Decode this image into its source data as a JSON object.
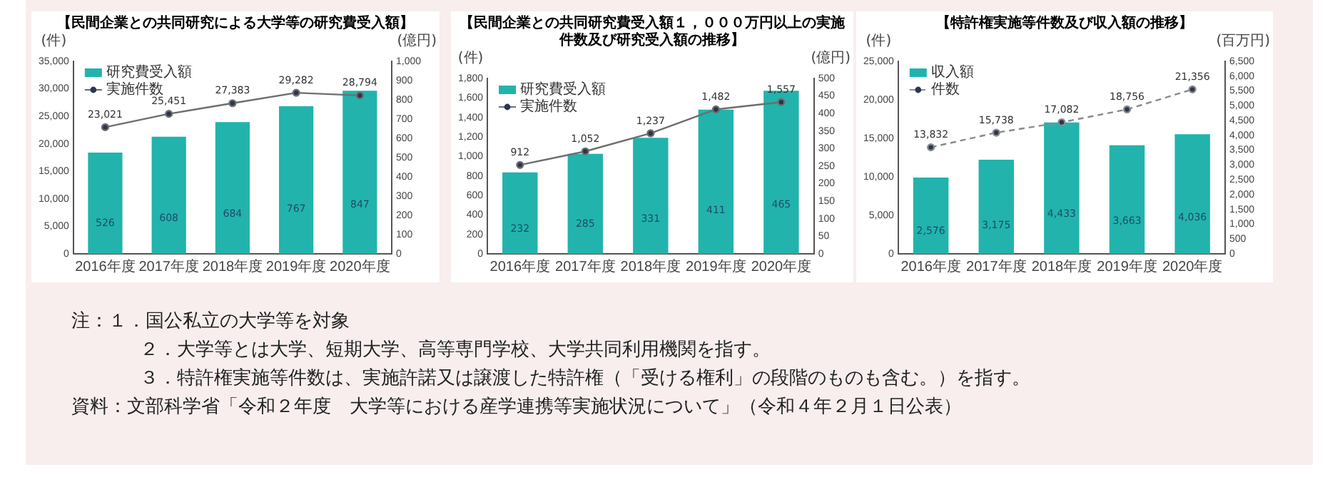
{
  "chart_data": [
    {
      "type": "bar",
      "title": "【民間企業との共同研究による大学等の研究費受入額】",
      "ylabel": "(件)",
      "y2label": "(億円)",
      "categories": [
        "2016年度",
        "2017年度",
        "2018年度",
        "2019年度",
        "2020年度"
      ],
      "series": [
        {
          "name": "研究費受入額",
          "axis": "y2",
          "color": "#22b3ad",
          "values": [
            526,
            608,
            684,
            767,
            847
          ],
          "value_labels": [
            "526",
            "608",
            "684",
            "767",
            "847"
          ]
        },
        {
          "name": "実施件数",
          "type": "line",
          "color": "#6e6e6e",
          "values": [
            23021,
            25451,
            27383,
            29282,
            28794
          ],
          "value_labels": [
            "23,021",
            "25,451",
            "27,383",
            "29,282",
            "28,794"
          ]
        }
      ],
      "ylim": [
        0,
        35000
      ],
      "yticks": [
        0,
        {
          "value": 5000,
          "label": "5,000"
        },
        {
          "value": 10000,
          "label": "10,000"
        },
        {
          "value": 15000,
          "label": "15,000"
        },
        {
          "value": 20000,
          "label": "20,000"
        },
        {
          "value": 25000,
          "label": "25,000"
        },
        {
          "value": 30000,
          "label": "30,000"
        },
        {
          "value": 35000,
          "label": "35,000"
        }
      ],
      "y2lim": [
        0,
        1000
      ],
      "y2ticks": [
        0,
        100,
        200,
        300,
        400,
        500,
        600,
        700,
        800,
        900,
        {
          "value": 1000,
          "label": "1,000"
        }
      ],
      "legend": "top left",
      "marker": "circle",
      "line_style": "solid",
      "annotations": [
        "注：１．国公私立の大学等を対象",
        "２．大学等とは大学、短期大学、高等専門学校、大学共同利用機関を指す。",
        "３．特許権実施等件数は、実施許諾又は譲渡した特許権（「受ける権利」の段階のものも含む。）を指す。",
        "資料：文部科学省「令和２年度　大学等における産学連携等実施状況について」（令和４年２月１日公表）"
      ]
    },
    {
      "type": "bar",
      "title": "【民間企業との共同研究費受入額１，０００万円以上の実施件数及び研究受入額の推移】",
      "ylabel": "(件)",
      "y2label": "(億円)",
      "categories": [
        "2016年度",
        "2017年度",
        "2018年度",
        "2019年度",
        "2020年度"
      ],
      "series": [
        {
          "name": "研究費受入額",
          "axis": "y2",
          "color": "#22b3ad",
          "values": [
            232,
            285,
            331,
            411,
            465
          ],
          "value_labels": [
            "232",
            "285",
            "331",
            "411",
            "465"
          ]
        },
        {
          "name": "実施件数",
          "type": "line",
          "color": "#6e6e6e",
          "values": [
            912,
            1052,
            1237,
            1482,
            1557
          ],
          "value_labels": [
            "912",
            "1,052",
            "1,237",
            "1,482",
            "1,557"
          ]
        }
      ],
      "ylim": [
        0,
        1800
      ],
      "yticks": [
        0,
        200,
        400,
        600,
        800,
        {
          "value": 1000,
          "label": "1,000"
        },
        {
          "value": 1200,
          "label": "1,200"
        },
        {
          "value": 1400,
          "label": "1,400"
        },
        {
          "value": 1600,
          "label": "1,600"
        },
        {
          "value": 1800,
          "label": "1,800"
        }
      ],
      "y2lim": [
        0,
        500
      ],
      "y2ticks": [
        0,
        50,
        100,
        150,
        200,
        250,
        300,
        350,
        400,
        450,
        500
      ],
      "legend": "top left",
      "marker": "circle",
      "line_style": "solid"
    },
    {
      "type": "bar",
      "title": "【特許権実施等件数及び収入額の推移】",
      "ylabel": "(件)",
      "y2label": "(百万円)",
      "categories": [
        "2016年度",
        "2017年度",
        "2018年度",
        "2019年度",
        "2020年度"
      ],
      "series": [
        {
          "name": "収入額",
          "axis": "y2",
          "color": "#22b3ad",
          "values": [
            2576,
            3175,
            4433,
            3663,
            4036
          ],
          "value_labels": [
            "2,576",
            "3,175",
            "4,433",
            "3,663",
            "4,036"
          ]
        },
        {
          "name": "件数",
          "type": "line",
          "color": "#8a8a8a",
          "values": [
            13832,
            15738,
            17082,
            18756,
            21356
          ],
          "value_labels": [
            "13,832",
            "15,738",
            "17,082",
            "18,756",
            "21,356"
          ]
        }
      ],
      "ylim": [
        0,
        25000
      ],
      "yticks": [
        0,
        {
          "value": 5000,
          "label": "5,000"
        },
        {
          "value": 10000,
          "label": "10,000"
        },
        {
          "value": 15000,
          "label": "15,000"
        },
        {
          "value": 20000,
          "label": "20,000"
        },
        {
          "value": 25000,
          "label": "25,000"
        }
      ],
      "y2lim": [
        0,
        6500
      ],
      "y2ticks": [
        0,
        500,
        {
          "value": 1000,
          "label": "1,000"
        },
        {
          "value": 1500,
          "label": "1,500"
        },
        {
          "value": 2000,
          "label": "2,000"
        },
        {
          "value": 2500,
          "label": "2,500"
        },
        {
          "value": 3000,
          "label": "3,000"
        },
        {
          "value": 3500,
          "label": "3,500"
        },
        {
          "value": 4000,
          "label": "4,000"
        },
        {
          "value": 4500,
          "label": "4,500"
        },
        {
          "value": 5000,
          "label": "5,000"
        },
        {
          "value": 5500,
          "label": "5,500"
        },
        {
          "value": 6000,
          "label": "6,000"
        },
        {
          "value": 6500,
          "label": "6,500"
        }
      ],
      "legend": "top left",
      "marker": "circle",
      "line_style": "dashed"
    }
  ]
}
